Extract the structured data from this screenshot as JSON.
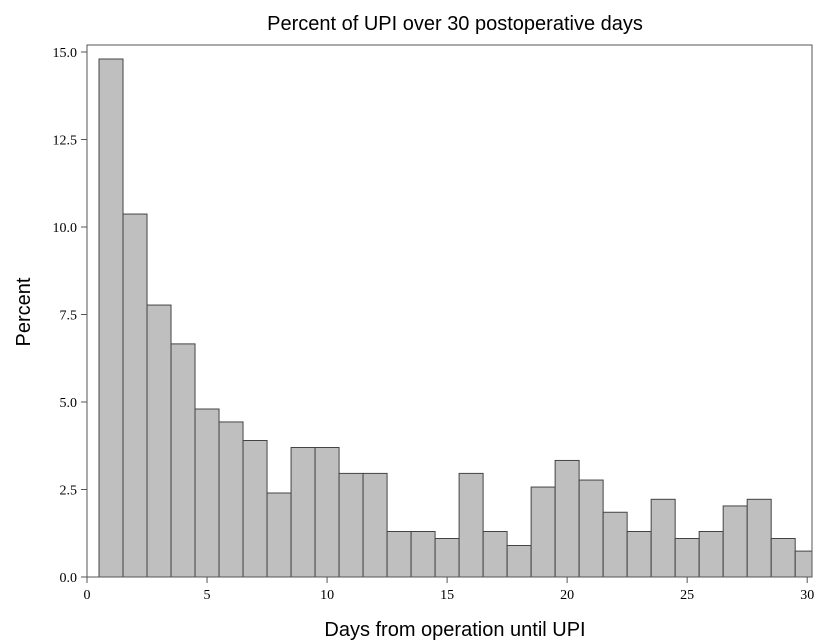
{
  "chart_data": {
    "type": "histogram",
    "title": "Percent of UPI over 30 postoperative days",
    "x_label": "Days from operation until UPI",
    "y_label": "Percent",
    "bins": [
      0.5,
      1.5,
      2.5,
      3.5,
      4.5,
      5.5,
      6.5,
      7.5,
      8.5,
      9.5,
      10.5,
      11.5,
      12.5,
      13.5,
      14.5,
      15.5,
      16.5,
      17.5,
      18.5,
      19.5,
      20.5,
      21.5,
      22.5,
      23.5,
      24.5,
      25.5,
      26.5,
      27.5,
      28.5,
      29.5,
      30.5
    ],
    "values": [
      14.8,
      10.37,
      7.77,
      6.66,
      4.8,
      4.43,
      3.9,
      2.4,
      3.7,
      3.7,
      2.96,
      2.96,
      1.3,
      1.3,
      1.1,
      2.96,
      1.3,
      0.9,
      2.57,
      3.33,
      2.77,
      1.85,
      1.3,
      2.22,
      1.1,
      1.3,
      2.03,
      2.22,
      1.1,
      0.74
    ],
    "color": "#bfbfbf",
    "xlim": [
      0,
      30.2
    ],
    "xticks": [
      0,
      5,
      10,
      15,
      20,
      25,
      30
    ],
    "ylim": [
      0,
      15.2
    ],
    "yticks": [
      {
        "value": 0,
        "label": "0.0"
      },
      2.5,
      {
        "value": 5,
        "label": "5.0"
      },
      7.5,
      {
        "value": 10,
        "label": "10.0"
      },
      12.5,
      {
        "value": 15,
        "label": "15.0"
      }
    ]
  }
}
